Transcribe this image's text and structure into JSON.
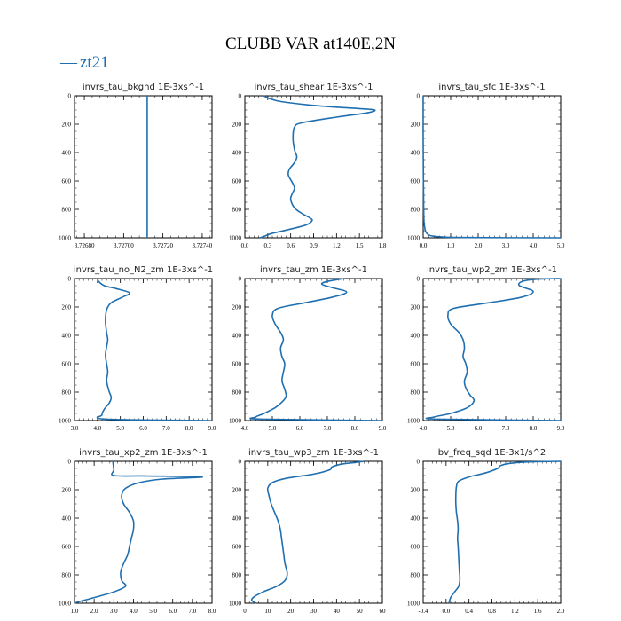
{
  "title": "CLUBB VAR at140E,2N",
  "legend": {
    "marker": "—",
    "label": "zt21",
    "color": "#1f6fb0"
  },
  "chart_data": [
    {
      "type": "line",
      "title": "invrs_tau_bkgnd   1E-3xs^-1",
      "xlim": [
        3.72675,
        3.72745
      ],
      "ylim": [
        0,
        1000
      ],
      "y_inverted": true,
      "xticks": [
        "3.72680",
        "3.72700",
        "3.72720",
        "3.72740"
      ],
      "xtick_values": [
        3.7268,
        3.727,
        3.7272,
        3.7274
      ],
      "yticks": [
        "0",
        "200",
        "400",
        "600",
        "800",
        "1000"
      ],
      "ytick_values": [
        0,
        200,
        400,
        600,
        800,
        1000
      ],
      "series": [
        {
          "x": [
            3.72712,
            3.72712
          ],
          "y": [
            0,
            1000
          ]
        }
      ]
    },
    {
      "type": "line",
      "title": "invrs_tau_shear   1E-3xs^-1",
      "xlim": [
        0.0,
        1.8
      ],
      "ylim": [
        0,
        1000
      ],
      "y_inverted": true,
      "xticks": [
        "0.0",
        "0.3",
        "0.6",
        "0.9",
        "1.2",
        "1.5",
        "1.8"
      ],
      "xtick_values": [
        0,
        0.3,
        0.6,
        0.9,
        1.2,
        1.5,
        1.8
      ],
      "yticks": [
        "0",
        "200",
        "400",
        "600",
        "800",
        "1000"
      ],
      "ytick_values": [
        0,
        200,
        400,
        600,
        800,
        1000
      ],
      "series": [
        {
          "x": [
            0.25,
            0.3,
            0.42,
            0.6,
            0.85,
            1.2,
            1.5,
            1.7,
            1.6,
            1.2,
            0.75,
            0.65,
            0.63,
            0.65,
            0.68,
            0.65,
            0.58,
            0.57,
            0.62,
            0.65,
            0.62,
            0.6,
            0.65,
            0.75,
            0.85,
            0.88,
            0.8,
            0.55,
            0.35,
            0.25,
            0.2
          ],
          "y": [
            0,
            15,
            35,
            50,
            65,
            80,
            90,
            100,
            120,
            150,
            190,
            220,
            300,
            380,
            430,
            470,
            520,
            560,
            610,
            650,
            690,
            730,
            790,
            830,
            860,
            880,
            910,
            945,
            970,
            990,
            1000
          ]
        }
      ]
    },
    {
      "type": "line",
      "title": "invrs_tau_sfc   1E-3xs^-1",
      "xlim": [
        0.0,
        5.0
      ],
      "ylim": [
        0,
        1000
      ],
      "y_inverted": true,
      "xticks": [
        "0.0",
        "1.0",
        "2.0",
        "3.0",
        "4.0",
        "5.0"
      ],
      "xtick_values": [
        0,
        1,
        2,
        3,
        4,
        5
      ],
      "yticks": [
        "0",
        "200",
        "400",
        "600",
        "800",
        "1000"
      ],
      "ytick_values": [
        0,
        200,
        400,
        600,
        800,
        1000
      ],
      "series": [
        {
          "x": [
            0.0,
            0.0,
            0.01,
            0.02,
            0.03,
            0.05,
            0.08,
            0.12,
            0.2,
            0.35,
            0.7,
            1.5,
            5.0
          ],
          "y": [
            0,
            300,
            600,
            800,
            880,
            920,
            950,
            965,
            980,
            988,
            994,
            998,
            1000
          ]
        }
      ]
    },
    {
      "type": "line",
      "title": "invrs_tau_no_N2_zm   1E-3xs^-1",
      "xlim": [
        3.0,
        9.0
      ],
      "ylim": [
        0,
        1000
      ],
      "y_inverted": true,
      "xticks": [
        "3.0",
        "4.0",
        "5.0",
        "6.0",
        "7.0",
        "8.0",
        "9.0"
      ],
      "xtick_values": [
        3,
        4,
        5,
        6,
        7,
        8,
        9
      ],
      "yticks": [
        "0",
        "200",
        "400",
        "600",
        "800",
        "1000"
      ],
      "ytick_values": [
        0,
        200,
        400,
        600,
        800,
        1000
      ],
      "series": [
        {
          "x": [
            4.0,
            4.05,
            4.3,
            4.8,
            5.4,
            5.1,
            4.6,
            4.4,
            4.35,
            4.4,
            4.45,
            4.4,
            4.35,
            4.4,
            4.45,
            4.4,
            4.5,
            4.6,
            4.5,
            4.3,
            4.2,
            4.4,
            9.0
          ],
          "y": [
            0,
            20,
            50,
            70,
            100,
            130,
            170,
            220,
            300,
            380,
            430,
            480,
            540,
            600,
            660,
            720,
            790,
            840,
            880,
            920,
            960,
            990,
            1000
          ]
        }
      ]
    },
    {
      "type": "line",
      "title": "invrs_tau_zm   1E-3xs^-1",
      "xlim": [
        4.0,
        9.0
      ],
      "ylim": [
        0,
        1000
      ],
      "y_inverted": true,
      "xticks": [
        "4.0",
        "5.0",
        "6.0",
        "7.0",
        "8.0",
        "9.0"
      ],
      "xtick_values": [
        4,
        5,
        6,
        7,
        8,
        9
      ],
      "yticks": [
        "0",
        "200",
        "400",
        "600",
        "800",
        "1000"
      ],
      "ytick_values": [
        0,
        200,
        400,
        600,
        800,
        1000
      ],
      "series": [
        {
          "x": [
            7.6,
            7.0,
            6.8,
            7.2,
            7.7,
            7.2,
            6.2,
            5.2,
            5.0,
            5.1,
            5.3,
            5.4,
            5.3,
            5.35,
            5.45,
            5.4,
            5.35,
            5.45,
            5.5,
            5.35,
            5.1,
            4.7,
            4.4,
            4.6,
            9.0
          ],
          "y": [
            0,
            20,
            40,
            65,
            95,
            130,
            170,
            210,
            260,
            320,
            380,
            430,
            490,
            550,
            600,
            660,
            720,
            780,
            830,
            870,
            910,
            950,
            975,
            990,
            1000
          ]
        }
      ]
    },
    {
      "type": "line",
      "title": "invrs_tau_wp2_zm   1E-3xs^-1",
      "xlim": [
        4.0,
        9.0
      ],
      "ylim": [
        0,
        1000
      ],
      "y_inverted": true,
      "xticks": [
        "4.0",
        "5.0",
        "6.0",
        "7.0",
        "8.0",
        "9.0"
      ],
      "xtick_values": [
        4,
        5,
        6,
        7,
        8,
        9
      ],
      "yticks": [
        "0",
        "200",
        "400",
        "600",
        "800",
        "1000"
      ],
      "ytick_values": [
        0,
        200,
        400,
        600,
        800,
        1000
      ],
      "series": [
        {
          "x": [
            9.0,
            8.1,
            7.6,
            7.5,
            8.0,
            7.6,
            6.4,
            5.1,
            4.9,
            5.0,
            5.3,
            5.45,
            5.5,
            5.45,
            5.55,
            5.6,
            5.5,
            5.55,
            5.7,
            5.85,
            5.6,
            5.0,
            4.4,
            4.5,
            9.0
          ],
          "y": [
            0,
            5,
            20,
            50,
            90,
            130,
            170,
            210,
            260,
            320,
            380,
            430,
            490,
            550,
            600,
            660,
            720,
            770,
            820,
            860,
            910,
            950,
            975,
            990,
            1000
          ]
        }
      ]
    },
    {
      "type": "line",
      "title": "invrs_tau_xp2_zm   1E-3xs^-1",
      "xlim": [
        1.0,
        8.0
      ],
      "ylim": [
        0,
        1000
      ],
      "y_inverted": true,
      "xticks": [
        "1.0",
        "2.0",
        "3.0",
        "4.0",
        "5.0",
        "6.0",
        "7.0",
        "8.0"
      ],
      "xtick_values": [
        1,
        2,
        3,
        4,
        5,
        6,
        7,
        8
      ],
      "yticks": [
        "0",
        "200",
        "400",
        "600",
        "800",
        "1000"
      ],
      "ytick_values": [
        0,
        200,
        400,
        600,
        800,
        1000
      ],
      "series": [
        {
          "x": [
            2.95,
            3.0,
            3.0,
            4.5,
            7.5,
            5.5,
            4.3,
            3.6,
            3.4,
            3.5,
            3.8,
            4.0,
            4.0,
            3.9,
            3.8,
            3.7,
            3.5,
            3.35,
            3.4,
            3.6,
            3.0,
            2.0,
            1.2,
            1.0
          ],
          "y": [
            0,
            60,
            100,
            103,
            110,
            125,
            150,
            190,
            240,
            300,
            360,
            420,
            480,
            540,
            600,
            660,
            720,
            780,
            840,
            880,
            920,
            960,
            990,
            1000
          ]
        }
      ]
    },
    {
      "type": "line",
      "title": "invrs_tau_wp3_zm   1E-3xs^-1",
      "xlim": [
        0,
        60
      ],
      "ylim": [
        0,
        1000
      ],
      "y_inverted": true,
      "xticks": [
        "0",
        "10",
        "20",
        "30",
        "40",
        "50",
        "60"
      ],
      "xtick_values": [
        0,
        10,
        20,
        30,
        40,
        50,
        60
      ],
      "yticks": [
        "0",
        "200",
        "400",
        "600",
        "800",
        "1000"
      ],
      "ytick_values": [
        0,
        200,
        400,
        600,
        800,
        1000
      ],
      "series": [
        {
          "x": [
            52,
            48,
            42,
            38,
            37,
            30,
            18,
            12,
            10,
            10.5,
            11.5,
            13,
            14.5,
            15.5,
            16,
            16.5,
            17,
            17.5,
            18.5,
            17.5,
            14,
            8,
            4,
            3,
            5
          ],
          "y": [
            0,
            8,
            20,
            40,
            60,
            90,
            120,
            150,
            190,
            240,
            300,
            360,
            420,
            480,
            540,
            600,
            660,
            720,
            790,
            840,
            880,
            920,
            955,
            980,
            1000
          ]
        }
      ]
    },
    {
      "type": "line",
      "title": "bv_freq_sqd   1E-3x1/s^2",
      "xlim": [
        -0.4,
        2.0
      ],
      "ylim": [
        0,
        1000
      ],
      "y_inverted": true,
      "xticks": [
        "-0.4",
        "0.0",
        "0.4",
        "0.8",
        "1.2",
        "1.6",
        "2.0"
      ],
      "xtick_values": [
        -0.4,
        0.0,
        0.4,
        0.8,
        1.2,
        1.6,
        2.0
      ],
      "yticks": [
        "0",
        "200",
        "400",
        "600",
        "800",
        "1000"
      ],
      "ytick_values": [
        0,
        200,
        400,
        600,
        800,
        1000
      ],
      "series": [
        {
          "x": [
            2.0,
            1.4,
            1.1,
            0.95,
            0.9,
            0.7,
            0.4,
            0.22,
            0.18,
            0.17,
            0.17,
            0.18,
            0.2,
            0.21,
            0.2,
            0.21,
            0.22,
            0.23,
            0.24,
            0.22,
            0.15,
            0.08,
            0.05
          ],
          "y": [
            0,
            5,
            15,
            30,
            50,
            80,
            110,
            140,
            180,
            240,
            300,
            360,
            420,
            480,
            540,
            600,
            680,
            760,
            830,
            880,
            920,
            960,
            1000
          ]
        }
      ]
    }
  ]
}
